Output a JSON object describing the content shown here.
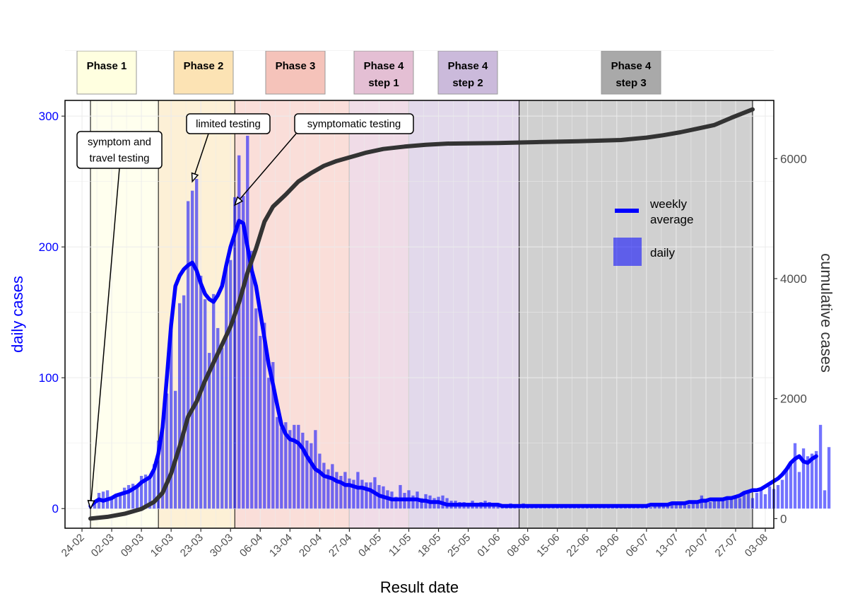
{
  "chart_data": {
    "type": "bar",
    "xlabel": "Result date",
    "ylabel_left": "daily cases",
    "ylabel_right": "cumulative cases",
    "ylim_left": [
      -15,
      312
    ],
    "yticks_left": [
      0,
      100,
      200,
      300
    ],
    "ylim_right": [
      -160,
      6970
    ],
    "yticks_right": [
      0,
      2000,
      4000,
      6000
    ],
    "colors": {
      "daily": "#0000ff",
      "weekly": "#0000ff",
      "cumulative": "#333333",
      "left_axis_text": "#0000ff",
      "grid": "#ebebeb"
    },
    "grid": true,
    "legend_position": "right inside plot",
    "legend": [
      {
        "key": "weekly",
        "label_lines": [
          "weekly",
          "average"
        ]
      },
      {
        "key": "daily",
        "label_lines": [
          "daily"
        ]
      }
    ],
    "x_start": "2020-02-26",
    "x_end": "2020-07-31",
    "xticks": [
      "24-02",
      "02-03",
      "09-03",
      "16-03",
      "23-03",
      "30-03",
      "06-04",
      "13-04",
      "20-04",
      "27-04",
      "04-05",
      "11-05",
      "18-05",
      "25-05",
      "01-06",
      "08-06",
      "15-06",
      "22-06",
      "29-06",
      "06-07",
      "13-07",
      "20-07",
      "27-07",
      "03-08"
    ],
    "phases": [
      {
        "start": "2020-02-26",
        "end": "2020-03-13",
        "label_lines": [
          "Phase 1"
        ],
        "color": "#ffffe0"
      },
      {
        "start": "2020-03-13",
        "end": "2020-03-31",
        "label_lines": [
          "Phase 2"
        ],
        "color": "#fce3b4"
      },
      {
        "start": "2020-03-31",
        "end": "2020-04-27",
        "label_lines": [
          "Phase 3"
        ],
        "color": "#f5c3ba"
      },
      {
        "start": "2020-04-27",
        "end": "2020-05-11",
        "label_lines": [
          "Phase 4",
          "step 1"
        ],
        "color": "#e4bfd4"
      },
      {
        "start": "2020-05-11",
        "end": "2020-06-06",
        "label_lines": [
          "Phase 4",
          "step 2"
        ],
        "color": "#cbbadb"
      },
      {
        "start": "2020-06-06",
        "end": "2020-07-31",
        "label_lines": [
          "Phase 4",
          "step 3"
        ],
        "color": "#a9a9a9"
      }
    ],
    "annotations": [
      {
        "label_lines": [
          "symptom and",
          "travel testing"
        ],
        "target_date": "2020-02-26",
        "target_value": 0
      },
      {
        "label_lines": [
          "limited testing"
        ],
        "target_date": "2020-03-21",
        "target_value": 250
      },
      {
        "label_lines": [
          "symptomatic testing"
        ],
        "target_date": "2020-03-31",
        "target_value": 232
      }
    ],
    "daily": {
      "start": "2020-02-26",
      "values": [
        4,
        4,
        12,
        13,
        14,
        8,
        10,
        12,
        16,
        18,
        19,
        17,
        25,
        26,
        25,
        34,
        52,
        63,
        88,
        136,
        90,
        157,
        163,
        235,
        243,
        252,
        178,
        160,
        119,
        164,
        138,
        123,
        185,
        190,
        238,
        270,
        239,
        285,
        197,
        153,
        132,
        142,
        100,
        112,
        70,
        62,
        66,
        60,
        64,
        64,
        58,
        52,
        50,
        60,
        42,
        35,
        30,
        34,
        28,
        25,
        28,
        23,
        22,
        28,
        22,
        20,
        20,
        24,
        18,
        17,
        14,
        13,
        9,
        18,
        12,
        14,
        10,
        13,
        8,
        11,
        10,
        8,
        9,
        10,
        8,
        6,
        6,
        5,
        5,
        4,
        6,
        3,
        5,
        6,
        5,
        4,
        4,
        3,
        3,
        4,
        3,
        2,
        4,
        3,
        2,
        2,
        3,
        2,
        2,
        1,
        2,
        2,
        1,
        1,
        2,
        1,
        2,
        3,
        2,
        1,
        1,
        2,
        1,
        2,
        3,
        2,
        2,
        1,
        1,
        2,
        2,
        3,
        1,
        3,
        3,
        2,
        2,
        3,
        3,
        4,
        5,
        3,
        4,
        6,
        10,
        6,
        5,
        7,
        6,
        8,
        7,
        9,
        8,
        8,
        11,
        14,
        8,
        12,
        16,
        11,
        17,
        15,
        18,
        22,
        30,
        36,
        50,
        28,
        46,
        40,
        42,
        44,
        64,
        14,
        47
      ]
    },
    "weekly_average": {
      "start": "2020-02-26",
      "values": [
        2,
        5,
        7,
        6,
        7,
        8,
        10,
        11,
        12,
        13,
        15,
        17,
        20,
        22,
        24,
        30,
        42,
        62,
        100,
        140,
        170,
        178,
        183,
        186,
        188,
        182,
        172,
        164,
        160,
        158,
        163,
        170,
        186,
        200,
        210,
        220,
        218,
        200,
        182,
        170,
        150,
        130,
        110,
        95,
        79,
        64,
        57,
        53,
        52,
        50,
        46,
        40,
        35,
        30,
        28,
        25,
        24,
        23,
        21,
        20,
        18,
        18,
        17,
        16,
        16,
        15,
        14,
        12,
        10,
        9,
        8,
        7,
        7,
        7,
        7,
        7,
        7,
        7,
        6,
        6,
        5,
        5,
        5,
        4,
        3,
        3,
        3,
        3,
        3,
        3,
        3,
        3,
        3,
        3,
        3,
        3,
        3,
        2,
        2,
        2,
        2,
        2,
        2,
        2,
        2,
        2,
        2,
        2,
        2,
        2,
        2,
        2,
        2,
        2,
        2,
        2,
        2,
        2,
        2,
        2,
        2,
        2,
        2,
        2,
        2,
        2,
        2,
        2,
        2,
        2,
        2,
        2,
        3,
        3,
        3,
        3,
        3,
        4,
        4,
        4,
        4,
        5,
        5,
        5,
        6,
        6,
        7,
        7,
        7,
        7,
        8,
        8,
        9,
        10,
        12,
        13,
        14,
        14,
        15,
        17,
        19,
        21,
        23,
        26,
        30,
        35,
        38,
        40,
        36,
        35,
        38,
        40
      ]
    },
    "cumulative": {
      "points": [
        [
          "2020-02-26",
          0
        ],
        [
          "2020-03-01",
          30
        ],
        [
          "2020-03-05",
          80
        ],
        [
          "2020-03-09",
          160
        ],
        [
          "2020-03-12",
          280
        ],
        [
          "2020-03-14",
          430
        ],
        [
          "2020-03-16",
          750
        ],
        [
          "2020-03-18",
          1200
        ],
        [
          "2020-03-20",
          1700
        ],
        [
          "2020-03-22",
          1950
        ],
        [
          "2020-03-24",
          2300
        ],
        [
          "2020-03-26",
          2600
        ],
        [
          "2020-03-28",
          2900
        ],
        [
          "2020-03-30",
          3200
        ],
        [
          "2020-04-01",
          3600
        ],
        [
          "2020-04-03",
          4100
        ],
        [
          "2020-04-05",
          4500
        ],
        [
          "2020-04-07",
          4950
        ],
        [
          "2020-04-09",
          5200
        ],
        [
          "2020-04-12",
          5400
        ],
        [
          "2020-04-15",
          5620
        ],
        [
          "2020-04-18",
          5760
        ],
        [
          "2020-04-21",
          5880
        ],
        [
          "2020-04-24",
          5960
        ],
        [
          "2020-04-27",
          6020
        ],
        [
          "2020-05-01",
          6100
        ],
        [
          "2020-05-05",
          6160
        ],
        [
          "2020-05-10",
          6200
        ],
        [
          "2020-05-15",
          6230
        ],
        [
          "2020-05-20",
          6250
        ],
        [
          "2020-05-25",
          6255
        ],
        [
          "2020-06-01",
          6260
        ],
        [
          "2020-06-10",
          6275
        ],
        [
          "2020-06-20",
          6290
        ],
        [
          "2020-06-30",
          6310
        ],
        [
          "2020-07-06",
          6350
        ],
        [
          "2020-07-10",
          6390
        ],
        [
          "2020-07-14",
          6440
        ],
        [
          "2020-07-18",
          6500
        ],
        [
          "2020-07-22",
          6560
        ],
        [
          "2020-07-26",
          6680
        ],
        [
          "2020-07-31",
          6820
        ]
      ]
    }
  }
}
